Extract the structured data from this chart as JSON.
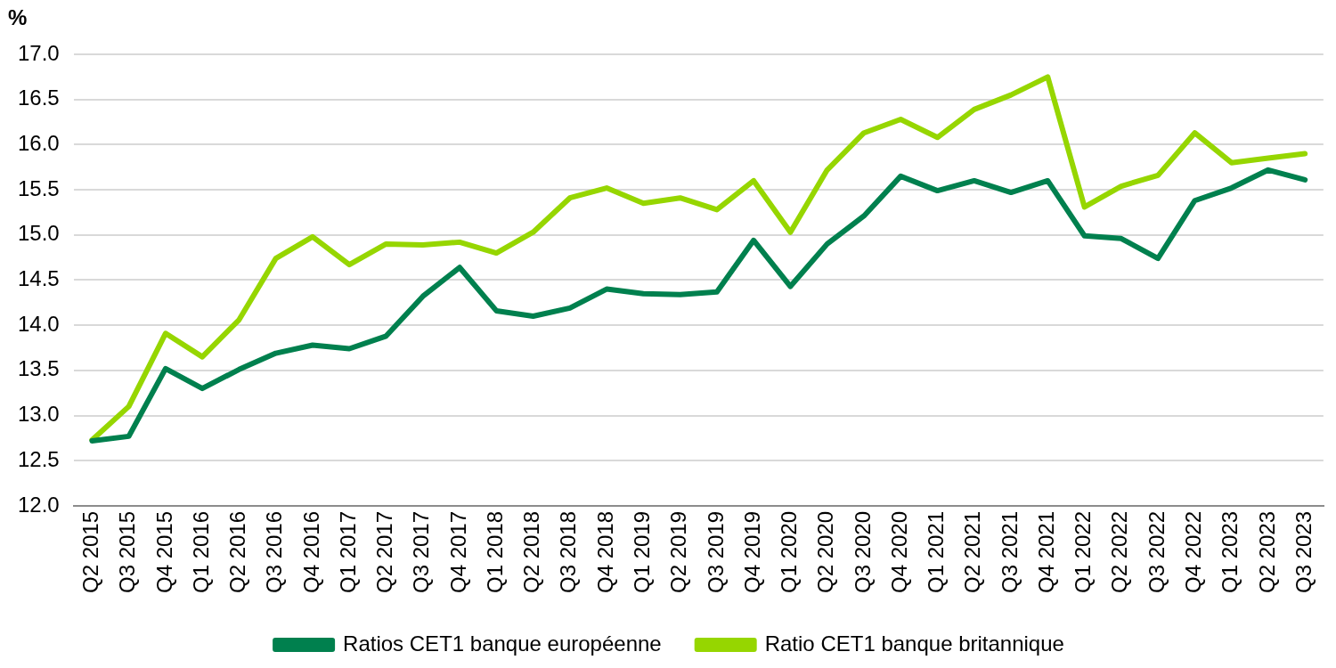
{
  "chart_data": {
    "type": "line",
    "ylabel": "%",
    "categories": [
      "Q2 2015",
      "Q3 2015",
      "Q4 2015",
      "Q1 2016",
      "Q2 2016",
      "Q3 2016",
      "Q4 2016",
      "Q1 2017",
      "Q2 2017",
      "Q3 2017",
      "Q4 2017",
      "Q1 2018",
      "Q2 2018",
      "Q3 2018",
      "Q4 2018",
      "Q1 2019",
      "Q2 2019",
      "Q3 2019",
      "Q4 2019",
      "Q1 2020",
      "Q2 2020",
      "Q3 2020",
      "Q4 2020",
      "Q1 2021",
      "Q2 2021",
      "Q3 2021",
      "Q4 2021",
      "Q1 2022",
      "Q2 2022",
      "Q3 2022",
      "Q4 2022",
      "Q1 2023",
      "Q2 2023",
      "Q3 2023"
    ],
    "series": [
      {
        "name": "Ratios CET1 banque européenne",
        "color": "#00804e",
        "values": [
          12.72,
          12.77,
          13.52,
          13.3,
          13.51,
          13.69,
          13.78,
          13.74,
          13.88,
          14.32,
          14.64,
          14.16,
          14.1,
          14.19,
          14.4,
          14.35,
          14.34,
          14.37,
          14.94,
          14.43,
          14.9,
          15.21,
          15.65,
          15.49,
          15.6,
          15.47,
          15.6,
          14.99,
          14.96,
          14.74,
          15.38,
          15.52,
          15.72,
          15.61
        ]
      },
      {
        "name": "Ratio CET1 banque britannique",
        "color": "#96d600",
        "values": [
          12.73,
          13.1,
          13.91,
          13.65,
          14.06,
          14.74,
          14.98,
          14.67,
          14.9,
          14.89,
          14.92,
          14.8,
          15.03,
          15.41,
          15.52,
          15.35,
          15.41,
          15.28,
          15.6,
          15.03,
          15.72,
          16.13,
          16.28,
          16.08,
          16.39,
          16.55,
          16.75,
          15.31,
          15.54,
          15.66,
          16.13,
          15.8,
          15.85,
          15.9
        ]
      }
    ],
    "ylim": [
      12,
      17
    ],
    "yticks": [
      {
        "value": 12,
        "label": "12.0"
      },
      {
        "value": 12.5,
        "label": "12.5"
      },
      {
        "value": 13,
        "label": "13.0"
      },
      {
        "value": 13.5,
        "label": "13.5"
      },
      {
        "value": 14,
        "label": "14.0"
      },
      {
        "value": 14.5,
        "label": "14.5"
      },
      {
        "value": 15,
        "label": "15.0"
      },
      {
        "value": 15.5,
        "label": "15.5"
      },
      {
        "value": 16,
        "label": "16.0"
      },
      {
        "value": 16.5,
        "label": "16.5"
      },
      {
        "value": 17,
        "label": "17.0"
      }
    ],
    "grid": "y",
    "legend": "bottom",
    "marker": "none",
    "line_style": "solid"
  }
}
